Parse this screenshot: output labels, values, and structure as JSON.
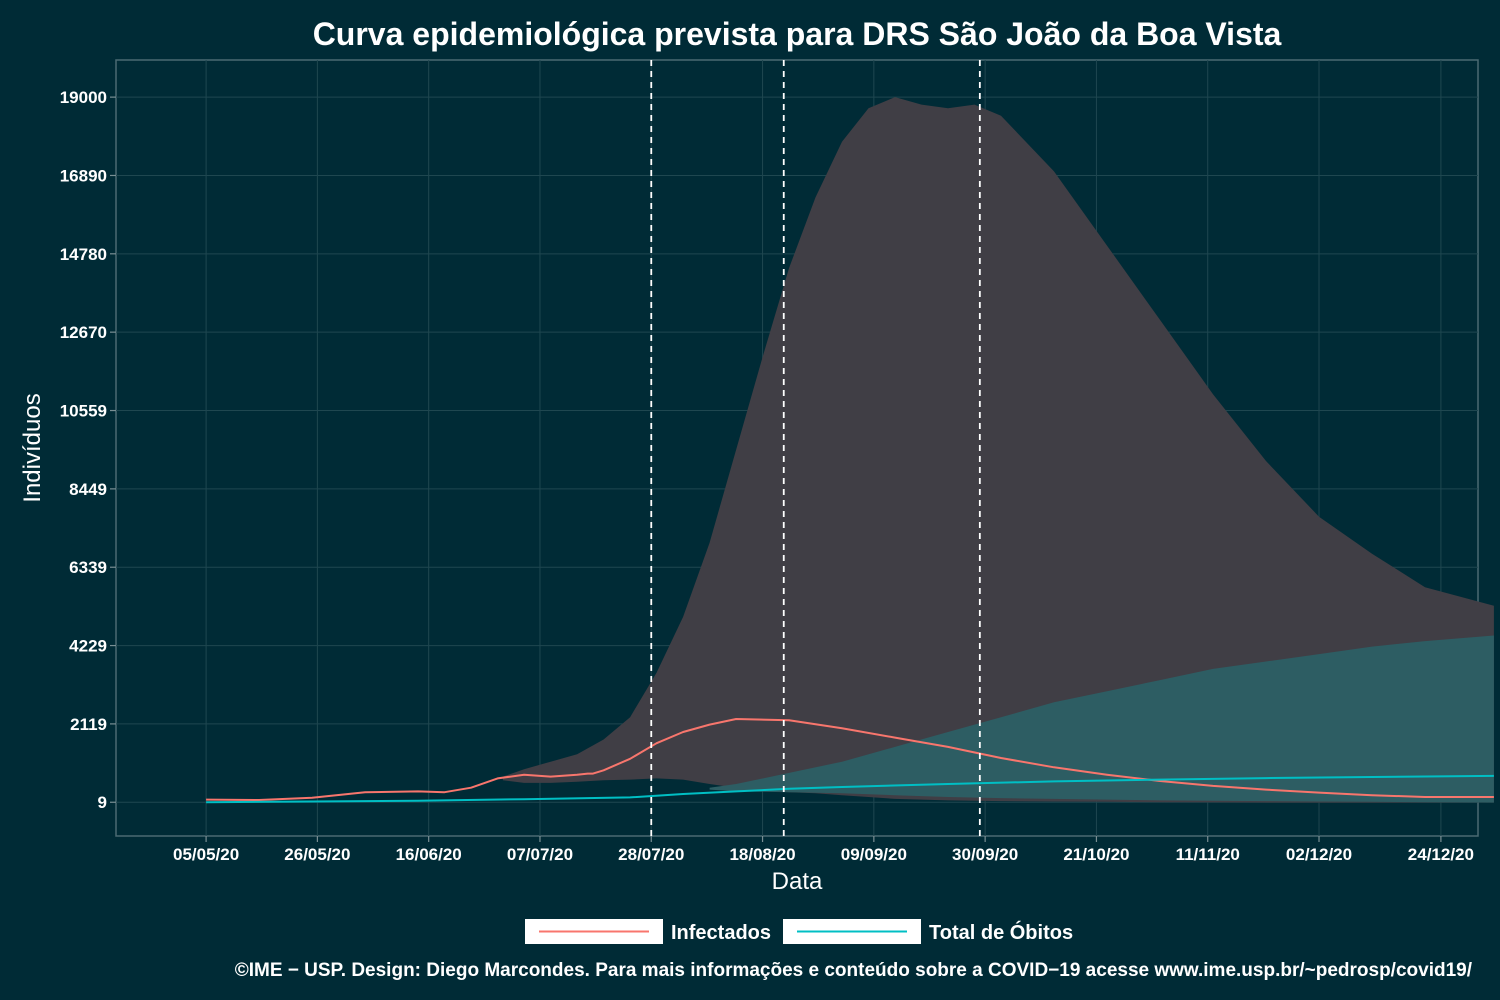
{
  "chart_data": {
    "type": "line",
    "title": "Curva epidemiológica prevista para DRS São João da Boa Vista",
    "xlabel": "Data",
    "ylabel": "Indivíduos",
    "x_ticks": [
      "05/05/20",
      "26/05/20",
      "16/06/20",
      "07/07/20",
      "28/07/20",
      "18/08/20",
      "09/09/20",
      "30/09/20",
      "21/10/20",
      "11/11/20",
      "02/12/20",
      "24/12/20"
    ],
    "y_ticks": [
      "9",
      "2119",
      "4229",
      "6339",
      "8449",
      "10559",
      "12670",
      "14780",
      "16890",
      "19000"
    ],
    "xlim_days": [
      -17,
      240
    ],
    "ylim": [
      -900,
      20000
    ],
    "vlines_days": [
      84,
      109,
      146
    ],
    "grid": true,
    "legend_position": "bottom",
    "series": [
      {
        "name": "Infectados",
        "color": "#f8766d",
        "x_days": [
          0,
          10,
          20,
          30,
          40,
          45,
          50,
          55,
          60,
          65,
          70,
          72,
          73,
          75,
          80,
          85,
          90,
          95,
          100,
          110,
          120,
          130,
          140,
          150,
          160,
          170,
          180,
          190,
          200,
          210,
          220,
          230,
          243
        ],
        "values": [
          80,
          70,
          130,
          280,
          300,
          280,
          400,
          650,
          750,
          700,
          750,
          780,
          780,
          870,
          1180,
          1600,
          1900,
          2100,
          2250,
          2220,
          2000,
          1750,
          1500,
          1200,
          950,
          750,
          580,
          450,
          350,
          270,
          200,
          150,
          150
        ]
      },
      {
        "name": "Total de Óbitos",
        "color": "#00bfc4",
        "x_days": [
          0,
          20,
          40,
          60,
          80,
          90,
          100,
          110,
          120,
          140,
          160,
          180,
          200,
          220,
          243
        ],
        "values": [
          10,
          30,
          50,
          90,
          140,
          230,
          300,
          370,
          420,
          500,
          570,
          620,
          660,
          690,
          720
        ]
      }
    ],
    "bands": [
      {
        "fill": "#403e45",
        "x_days": [
          56,
          60,
          65,
          70,
          75,
          80,
          85,
          90,
          95,
          100,
          105,
          110,
          115,
          120,
          125,
          130,
          135,
          140,
          145,
          150,
          160,
          170,
          180,
          190,
          200,
          210,
          220,
          230,
          243
        ],
        "upper": [
          700,
          900,
          1100,
          1300,
          1700,
          2300,
          3500,
          5000,
          7000,
          9500,
          12000,
          14400,
          16300,
          17800,
          18700,
          19000,
          18800,
          18700,
          18800,
          18500,
          17000,
          15000,
          13000,
          11000,
          9200,
          7700,
          6700,
          5800,
          5300
        ],
        "lower": [
          600,
          530,
          530,
          560,
          600,
          620,
          650,
          620,
          500,
          400,
          330,
          280,
          250,
          200,
          150,
          100,
          80,
          60,
          50,
          40,
          30,
          20,
          10,
          5,
          0,
          0,
          0,
          0,
          0
        ]
      },
      {
        "fill": "#2d5d63",
        "x_days": [
          95,
          100,
          110,
          120,
          130,
          140,
          150,
          160,
          170,
          180,
          190,
          200,
          210,
          220,
          230,
          243
        ],
        "upper": [
          400,
          500,
          800,
          1100,
          1500,
          1900,
          2300,
          2700,
          3000,
          3300,
          3600,
          3800,
          4000,
          4200,
          4350,
          4500
        ],
        "lower": [
          350,
          300,
          280,
          250,
          200,
          150,
          120,
          100,
          80,
          60,
          50,
          40,
          30,
          20,
          10,
          0
        ]
      }
    ]
  },
  "legend": {
    "items": [
      {
        "label": "Infectados",
        "color": "#f8766d"
      },
      {
        "label": "Total de Óbitos",
        "color": "#00bfc4"
      }
    ]
  },
  "caption": "©IME − USP. Design: Diego Marcondes. Para mais informações e conteúdo sobre a COVID−19 acesse www.ime.usp.br/~pedrosp/covid19/"
}
